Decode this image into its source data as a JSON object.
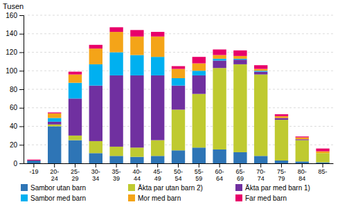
{
  "chart_data": {
    "type": "bar",
    "stacked": true,
    "ylabel": "Tusen",
    "categories": [
      "-19",
      "20-\n24",
      "25-\n29",
      "30-\n34",
      "35-\n39",
      "40-\n44",
      "45-\n49",
      "50-\n54",
      "55-\n59",
      "60-\n64",
      "65-\n69",
      "70-\n74",
      "75-\n79",
      "80-\n84",
      "85-"
    ],
    "series": [
      {
        "name": "Sambor utan barn",
        "color": "#2E75B6",
        "values": [
          3,
          40,
          25,
          11,
          8,
          7,
          8,
          14,
          17,
          15,
          12,
          8,
          3,
          2,
          1
        ]
      },
      {
        "name": "Äkta par utan barn 2)",
        "color": "#BFCA30",
        "values": [
          0,
          2,
          5,
          13,
          10,
          10,
          17,
          44,
          58,
          88,
          95,
          88,
          44,
          23,
          10
        ]
      },
      {
        "name": "Äkta par med barn 1)",
        "color": "#7030A0",
        "values": [
          0,
          3,
          40,
          60,
          77,
          78,
          70,
          26,
          20,
          8,
          5,
          3,
          2,
          1,
          0
        ]
      },
      {
        "name": "Sambor med barn",
        "color": "#00B0F0",
        "values": [
          0,
          4,
          17,
          23,
          25,
          22,
          20,
          8,
          5,
          2,
          1,
          1,
          0,
          0,
          0
        ]
      },
      {
        "name": "Mor med barn",
        "color": "#F4A418",
        "values": [
          0,
          5,
          9,
          17,
          22,
          20,
          22,
          10,
          8,
          4,
          3,
          2,
          2,
          2,
          2
        ]
      },
      {
        "name": "Far med barn",
        "color": "#E8006A",
        "values": [
          1,
          1,
          3,
          4,
          5,
          7,
          5,
          3,
          7,
          6,
          6,
          4,
          2,
          1,
          3
        ]
      }
    ],
    "ylim": [
      0,
      160
    ],
    "yticks": [
      0,
      20,
      40,
      60,
      80,
      100,
      120,
      140,
      160
    ],
    "grid": true,
    "legend": "bottom"
  }
}
